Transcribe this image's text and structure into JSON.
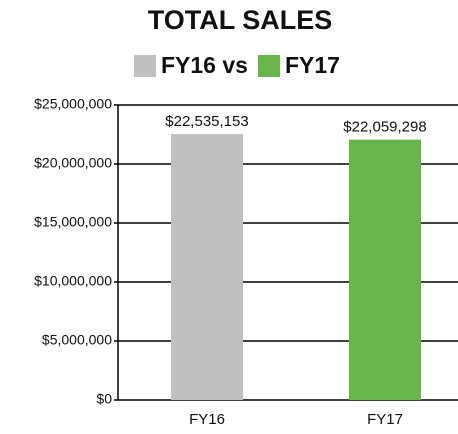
{
  "chart_data": {
    "type": "bar",
    "title": "TOTAL SALES",
    "legend": [
      {
        "label": "FY16 vs",
        "color": "#c0c0c0"
      },
      {
        "label": "FY17",
        "color": "#6ab44c"
      }
    ],
    "categories": [
      "FY16",
      "FY17"
    ],
    "values": [
      22535153,
      22059298
    ],
    "value_labels": [
      "$22,535,153",
      "$22,059,298"
    ],
    "colors": [
      "#c0c0c0",
      "#6ab44c"
    ],
    "ylim": [
      0,
      25000000
    ],
    "yticks": [
      {
        "value": 0,
        "label": "$0"
      },
      {
        "value": 5000000,
        "label": "$5,000,000"
      },
      {
        "value": 10000000,
        "label": "$10,000,000"
      },
      {
        "value": 15000000,
        "label": "$15,000,000"
      },
      {
        "value": 20000000,
        "label": "$20,000,000"
      },
      {
        "value": 25000000,
        "label": "$25,000,000"
      }
    ],
    "grid": true
  }
}
